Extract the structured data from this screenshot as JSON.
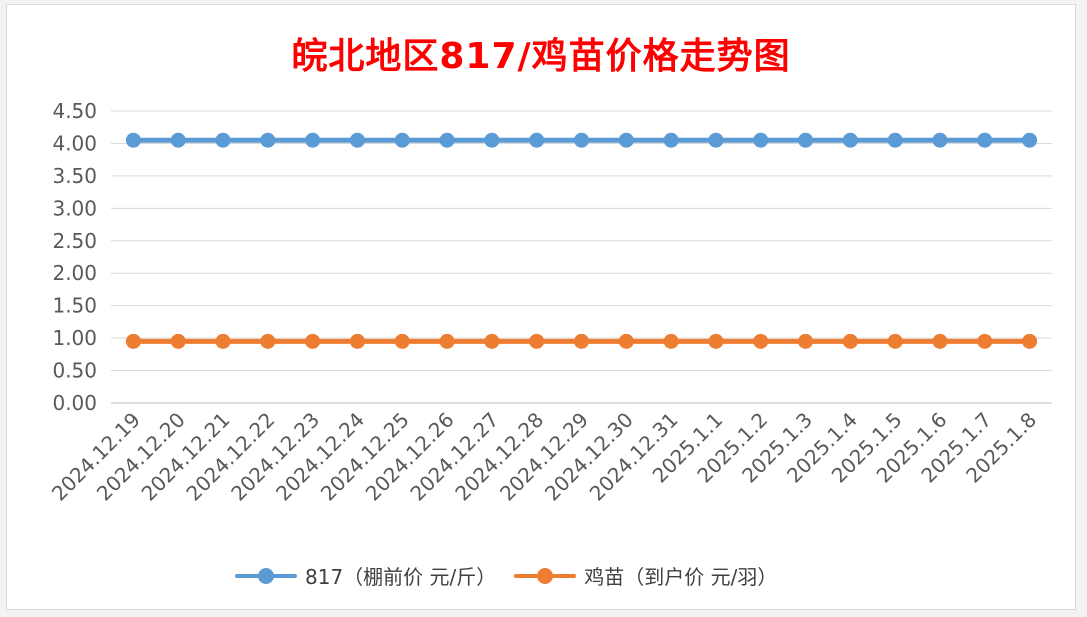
{
  "chart_data": {
    "type": "line",
    "title": "皖北地区817/鸡苗价格走势图",
    "categories": [
      "2024.12.19",
      "2024.12.20",
      "2024.12.21",
      "2024.12.22",
      "2024.12.23",
      "2024.12.24",
      "2024.12.25",
      "2024.12.26",
      "2024.12.27",
      "2024.12.28",
      "2024.12.29",
      "2024.12.30",
      "2024.12.31",
      "2025.1.1",
      "2025.1.2",
      "2025.1.3",
      "2025.1.4",
      "2025.1.5",
      "2025.1.6",
      "2025.1.7",
      "2025.1.8"
    ],
    "series": [
      {
        "name": "817（棚前价 元/斤）",
        "color": "#5b9bd5",
        "values": [
          4.05,
          4.05,
          4.05,
          4.05,
          4.05,
          4.05,
          4.05,
          4.05,
          4.05,
          4.05,
          4.05,
          4.05,
          4.05,
          4.05,
          4.05,
          4.05,
          4.05,
          4.05,
          4.05,
          4.05,
          4.05
        ]
      },
      {
        "name": "鸡苗（到户价 元/羽）",
        "color": "#ed7d31",
        "values": [
          0.95,
          0.95,
          0.95,
          0.95,
          0.95,
          0.95,
          0.95,
          0.95,
          0.95,
          0.95,
          0.95,
          0.95,
          0.95,
          0.95,
          0.95,
          0.95,
          0.95,
          0.95,
          0.95,
          0.95,
          0.95
        ]
      }
    ],
    "ylim": [
      0,
      4.5
    ],
    "yticks": [
      "0.00",
      "0.50",
      "1.00",
      "1.50",
      "2.00",
      "2.50",
      "3.00",
      "3.50",
      "4.00",
      "4.50"
    ],
    "grid": true,
    "legend_position": "bottom"
  }
}
